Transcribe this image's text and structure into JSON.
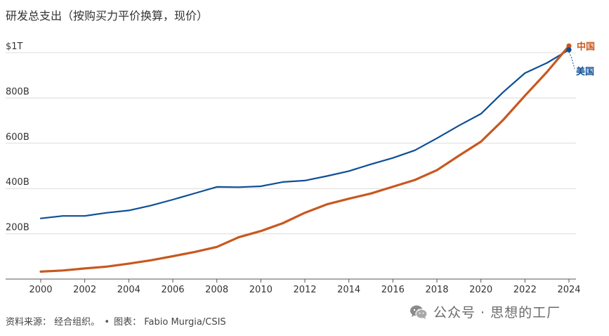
{
  "title": "研发总支出（按购买力平价换算，现价）",
  "source": {
    "label": "资料来源：",
    "org": "经合组织。",
    "chart_credit": "图表： Fabio Murgia/CSIS"
  },
  "watermark": {
    "text": "公众号 · 思想的工厂",
    "icon": "wechat-icon"
  },
  "colors": {
    "china": "#c8581e",
    "usa": "#0d4f96",
    "grid": "#dcdcdc",
    "axis": "#555555"
  },
  "chart_data": {
    "type": "line",
    "title": "研发总支出（按购买力平价换算，现价）",
    "xlabel": "",
    "ylabel": "",
    "xlim": [
      2000,
      2024
    ],
    "ylim": [
      0,
      1000
    ],
    "unit": "十亿美元",
    "x_ticks": [
      2000,
      2002,
      2004,
      2006,
      2008,
      2010,
      2012,
      2014,
      2016,
      2018,
      2020,
      2022,
      2024
    ],
    "y_ticks": [
      {
        "value": 200,
        "label": "200B"
      },
      {
        "value": 400,
        "label": "400B"
      },
      {
        "value": 600,
        "label": "600B"
      },
      {
        "value": 800,
        "label": "800B"
      },
      {
        "value": 1000,
        "label": "$1T"
      }
    ],
    "grid": true,
    "x": [
      2000,
      2001,
      2002,
      2003,
      2004,
      2005,
      2006,
      2007,
      2008,
      2009,
      2010,
      2011,
      2012,
      2013,
      2014,
      2015,
      2016,
      2017,
      2018,
      2019,
      2020,
      2021,
      2022,
      2023,
      2024
    ],
    "series": [
      {
        "name": "中国",
        "key": "china",
        "values": [
          33,
          38,
          47,
          55,
          68,
          83,
          101,
          120,
          142,
          185,
          212,
          247,
          293,
          330,
          355,
          378,
          408,
          438,
          481,
          545,
          607,
          702,
          810,
          915,
          1030
        ]
      },
      {
        "name": "美国",
        "key": "usa",
        "values": [
          268,
          279,
          279,
          293,
          303,
          325,
          351,
          379,
          407,
          406,
          410,
          429,
          435,
          455,
          477,
          507,
          535,
          569,
          622,
          678,
          730,
          825,
          910,
          955,
          1013
        ]
      }
    ]
  }
}
